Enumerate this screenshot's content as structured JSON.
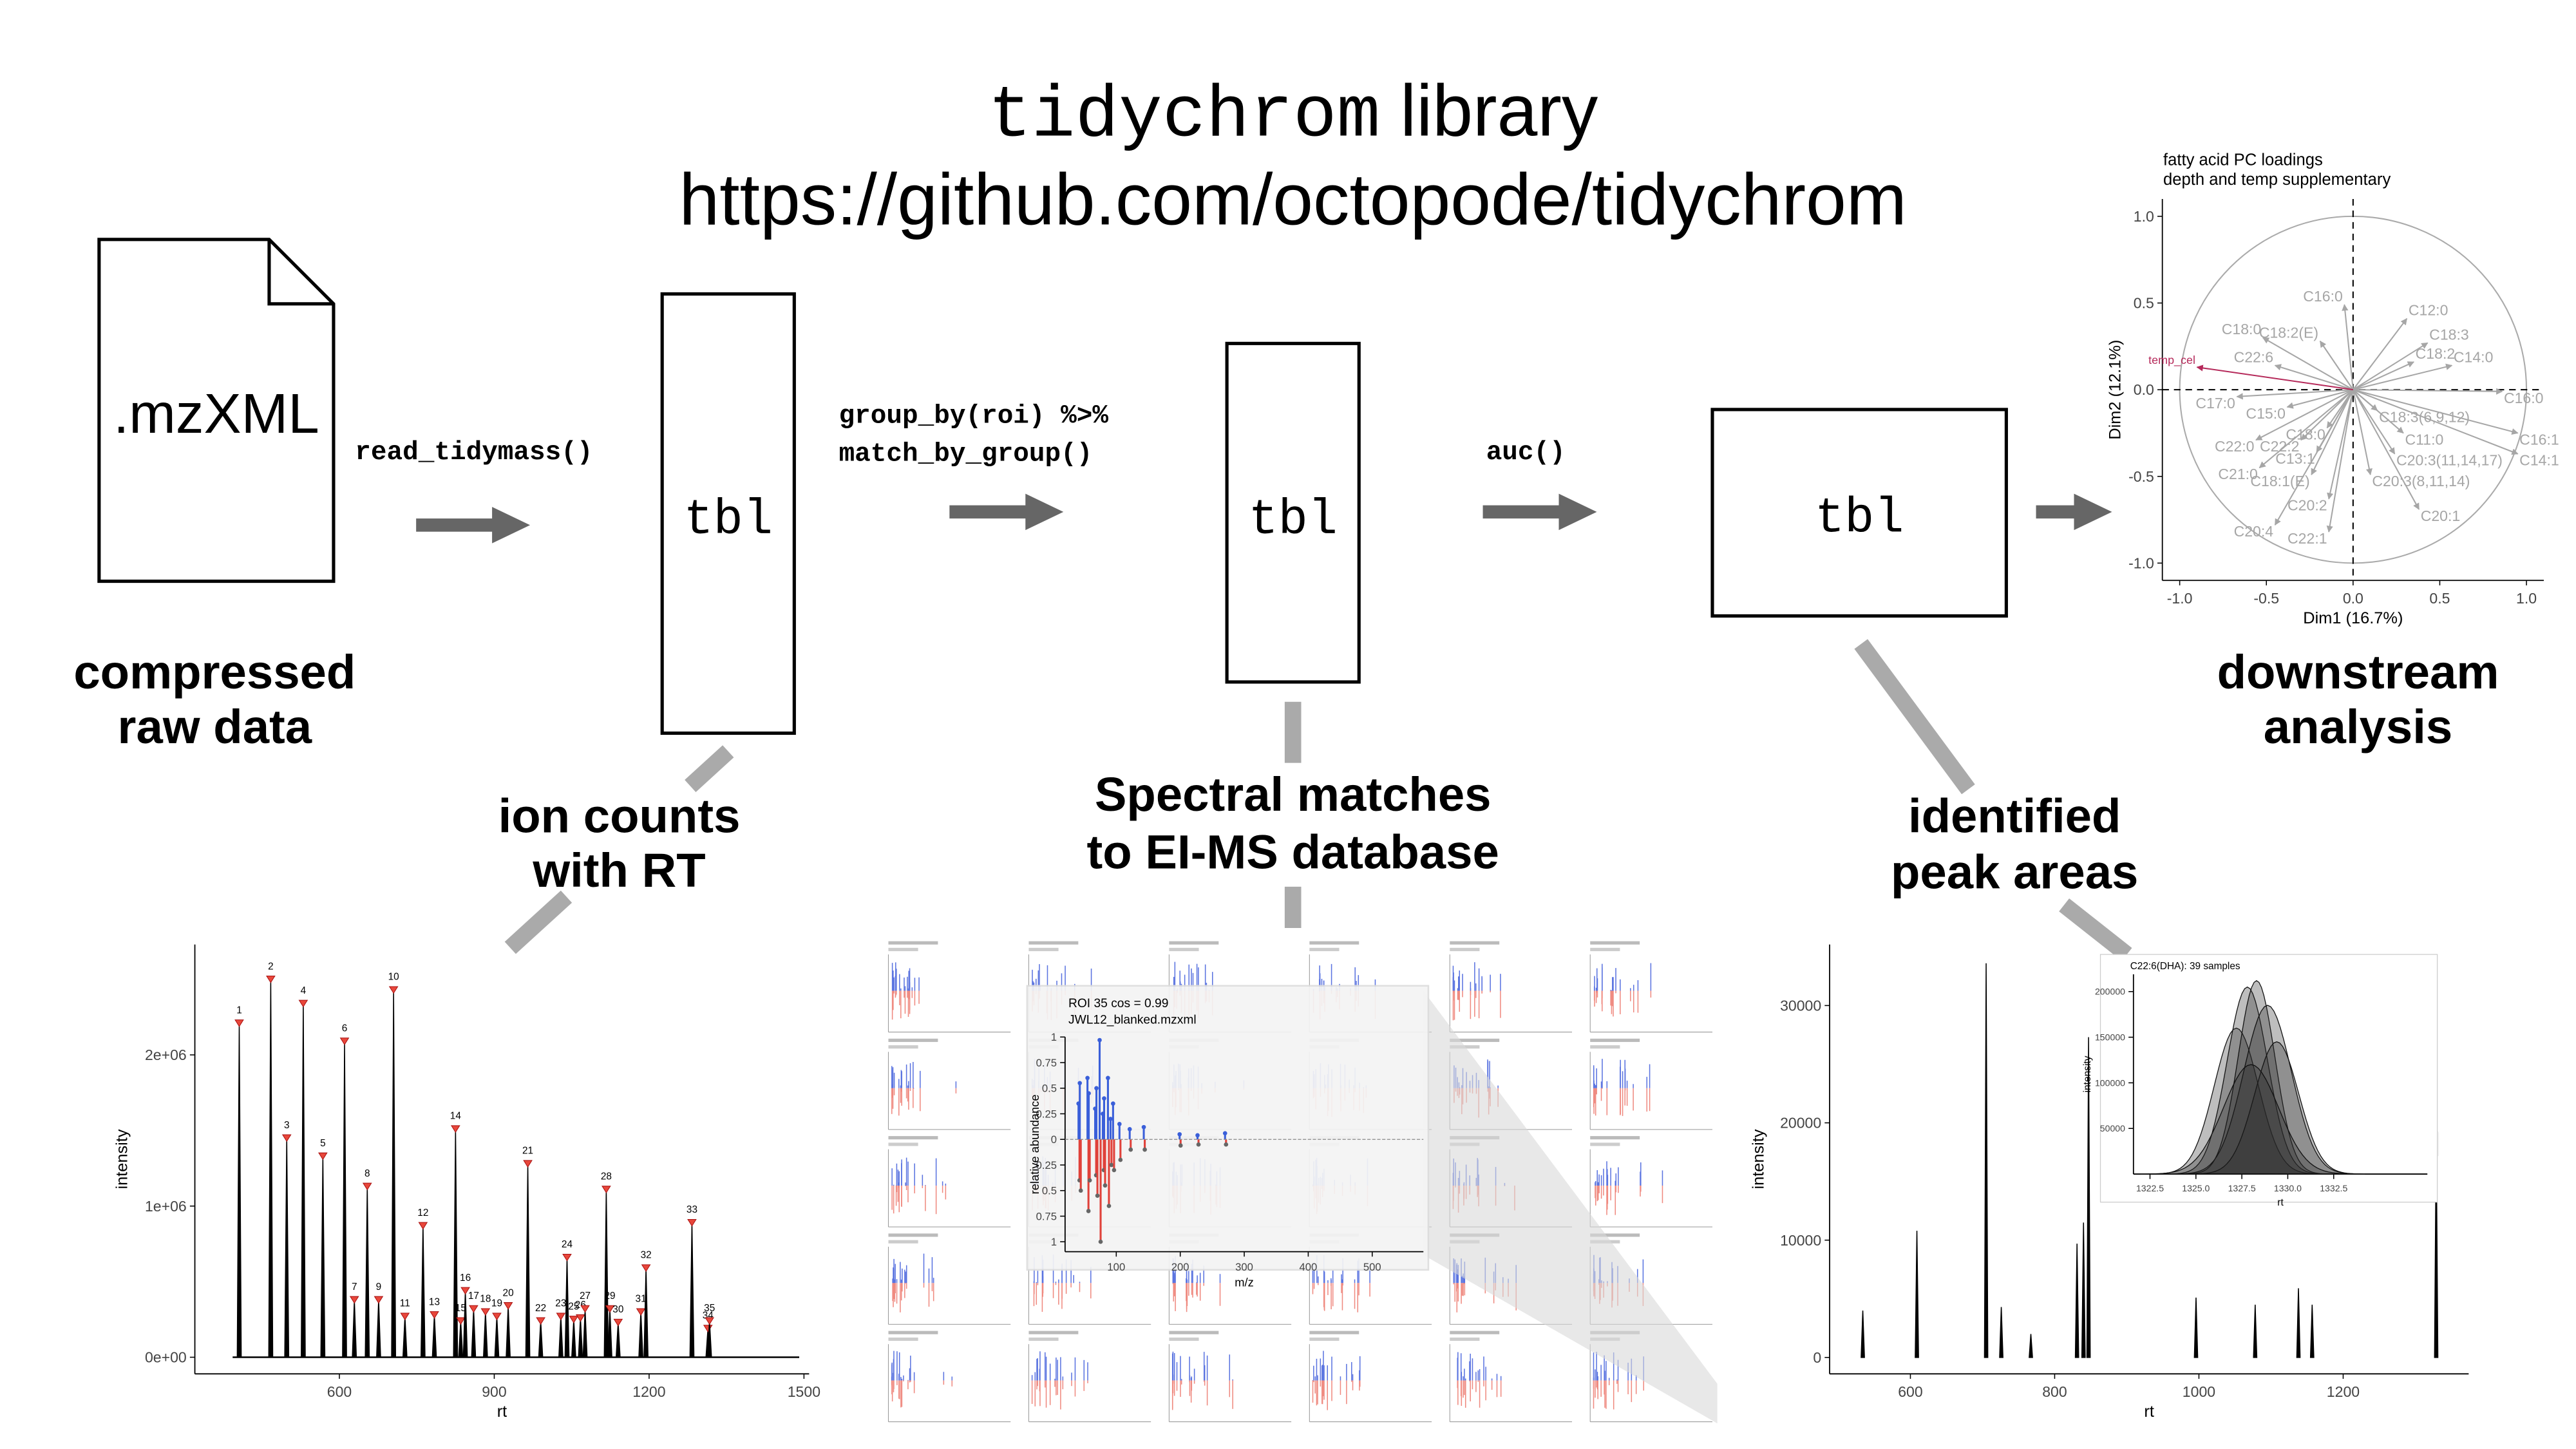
{
  "header": {
    "title_code": "tidychrom",
    "title_text": "library",
    "url": "https://github.com/octopode/tidychrom"
  },
  "pipeline": {
    "input_file": ".mzXML",
    "steps": [
      {
        "code": [
          "read_tidymass()"
        ]
      },
      {
        "code": [
          "group_by(roi) %>%",
          "match_by_group()"
        ]
      },
      {
        "code": [
          "auc()"
        ]
      }
    ],
    "tables": [
      "tbl",
      "tbl",
      "tbl"
    ]
  },
  "captions": {
    "raw": [
      "compressed",
      "raw data"
    ],
    "ions": [
      "ion counts",
      "with RT"
    ],
    "spectral": [
      "Spectral matches",
      "to EI-MS database"
    ],
    "areas": [
      "identified",
      "peak areas"
    ],
    "downstream": [
      "downstream",
      "analysis"
    ]
  },
  "chromatogram": {
    "type": "line",
    "x_label": "rt",
    "y_label": "intensity",
    "xlim": [
      320,
      1510
    ],
    "xticks": [
      600,
      900,
      1200,
      1500
    ],
    "ylim": [
      -110000,
      2730000
    ],
    "yticks": [
      {
        "value": 0,
        "label": "0e+00"
      },
      {
        "value": 1000000,
        "label": "1e+06"
      },
      {
        "value": 2000000,
        "label": "2e+06"
      }
    ],
    "peaks": {
      "labels": [
        "1",
        "2",
        "3",
        "4",
        "5",
        "6",
        "7",
        "8",
        "9",
        "10",
        "11",
        "12",
        "13",
        "14",
        "15",
        "16",
        "17",
        "18",
        "19",
        "20",
        "21",
        "22",
        "23",
        "24",
        "25",
        "26",
        "27",
        "28",
        "29",
        "30",
        "31",
        "32",
        "33",
        "34",
        "35"
      ],
      "rt": [
        406,
        467,
        498,
        530,
        568,
        610,
        629,
        654,
        676,
        705,
        727,
        762,
        784,
        825,
        835,
        844,
        860,
        883,
        905,
        927,
        965,
        990,
        1029,
        1041,
        1054,
        1067,
        1076,
        1117,
        1124,
        1140,
        1184,
        1194,
        1283,
        1314,
        1317
      ],
      "intensity": [
        2210000,
        2500000,
        1450000,
        2340000,
        1330000,
        2090000,
        380000,
        1130000,
        380000,
        2430000,
        270000,
        870000,
        280000,
        1510000,
        240000,
        440000,
        320000,
        300000,
        270000,
        340000,
        1280000,
        240000,
        270000,
        660000,
        250000,
        260000,
        320000,
        1110000,
        320000,
        230000,
        300000,
        590000,
        890000,
        190000,
        240000
      ]
    }
  },
  "spectral_match": {
    "type": "bar",
    "title": "ROI 35 cos = 0.99",
    "file": "JWL12_blanked.mzxml",
    "x_label": "m/z",
    "y_label": "relative abundance",
    "xlim": [
      20,
      580
    ],
    "xticks": [
      100,
      200,
      300,
      400,
      500
    ],
    "ylim": [
      -1,
      1
    ],
    "yticks": [
      {
        "value": -1,
        "label": "1"
      },
      {
        "value": -0.75,
        "label": "0.75"
      },
      {
        "value": -0.5,
        "label": "0.5"
      },
      {
        "value": -0.25,
        "label": "0.25"
      },
      0,
      0.25,
      0.5,
      0.75,
      1
    ],
    "mz": [
      41,
      43,
      55,
      57,
      67,
      69,
      74,
      79,
      81,
      87,
      91,
      95,
      105,
      121,
      143,
      199,
      227,
      270
    ],
    "library": [
      0.35,
      0.55,
      0.6,
      0.45,
      0.3,
      0.5,
      0.97,
      0.25,
      0.4,
      0.6,
      0.2,
      0.35,
      0.15,
      0.1,
      0.12,
      0.05,
      0.04,
      0.06
    ],
    "sample": [
      -0.4,
      -0.5,
      -0.7,
      -0.4,
      -0.35,
      -0.55,
      -1,
      -0.3,
      -0.45,
      -0.65,
      -0.25,
      -0.3,
      -0.2,
      -0.1,
      -0.1,
      -0.06,
      -0.05,
      -0.05
    ],
    "library_color": "#3a5fd9",
    "sample_color": "#e0413a"
  },
  "peak_areas": {
    "type": "line",
    "x_label": "rt",
    "y_label": "intensity",
    "xlim": [
      488,
      1374
    ],
    "xticks": [
      600,
      800,
      1000,
      1200
    ],
    "ylim": [
      -1400,
      35200
    ],
    "yticks": [
      0,
      10000,
      20000,
      30000
    ],
    "peaks": {
      "rt": [
        534,
        609,
        705,
        726,
        767,
        831,
        840,
        847,
        996,
        1078,
        1138,
        1157,
        1329
      ],
      "intensity": [
        4000,
        10800,
        33600,
        4300,
        2000,
        9700,
        11500,
        27300,
        5100,
        4500,
        5900,
        4500,
        18900
      ]
    },
    "inset": {
      "title": "C22:6(DHA): 39 samples",
      "x_label": "rt",
      "y_label": "intensity",
      "xlim": [
        1321.6,
        1337.6
      ],
      "xticks": [
        1322.5,
        {
          "value": 1325,
          "label": "1325.0"
        },
        1327.5,
        {
          "value": 1330,
          "label": "1330.0"
        },
        1332.5
      ],
      "ylim": [
        0,
        219000
      ],
      "yticks": [
        50000,
        100000,
        150000,
        200000
      ],
      "samples": {
        "center": [
          1327.2,
          1327.8,
          1328.3,
          1328.9,
          1329.4,
          1328.0
        ],
        "height": [
          160000,
          205000,
          212000,
          185000,
          145000,
          120000
        ],
        "sigma": [
          1.2,
          1.1,
          1.0,
          1.3,
          1.2,
          1.5
        ]
      }
    }
  },
  "pca": {
    "type": "scatter",
    "title": [
      "fatty acid PC loadings",
      "depth and temp supplementary"
    ],
    "x_label": "Dim1 (16.7%)",
    "y_label": "Dim2 (12.1%)",
    "xlim": [
      -1.1,
      1.1
    ],
    "ylim": [
      -1.1,
      1.1
    ],
    "xticks": [
      {
        "value": -1,
        "label": "-1.0"
      },
      -0.5,
      {
        "value": 0,
        "label": "0.0"
      },
      0.5,
      {
        "value": 1,
        "label": "1.0"
      }
    ],
    "yticks": [
      {
        "value": -1,
        "label": "-1.0"
      },
      -0.5,
      {
        "value": 0,
        "label": "0.0"
      },
      0.5,
      {
        "value": 1,
        "label": "1.0"
      }
    ],
    "loadings": {
      "color": "#a6a6a6",
      "names": [
        "C16:0",
        "C12:0",
        "C18:3",
        "C18:2",
        "C14:0",
        "C18:0",
        "C18:2(E)",
        "C22:6",
        "C17:0",
        "C15:0",
        "C16:0",
        "C16:1",
        "C14:1",
        "C18:3(6,9,12)",
        "C11:0",
        "C20:3(11,14,17)",
        "C20:3(8,11,14)",
        "C20:1",
        "C18:0",
        "C13:1",
        "C22:2",
        "C22:0",
        "C21:0",
        "C18:1(E)",
        "C20:2",
        "C22:1",
        "C20:4"
      ],
      "dim1": [
        -0.05,
        0.31,
        0.43,
        0.35,
        0.57,
        -0.52,
        -0.19,
        -0.45,
        -0.67,
        -0.38,
        0.86,
        0.95,
        0.95,
        0.14,
        0.29,
        0.24,
        0.1,
        0.38,
        -0.15,
        -0.21,
        -0.3,
        -0.56,
        -0.54,
        -0.24,
        -0.14,
        -0.14,
        -0.45
      ],
      "dim2": [
        0.49,
        0.41,
        0.27,
        0.16,
        0.14,
        0.3,
        0.28,
        0.14,
        -0.04,
        -0.1,
        -0.01,
        -0.25,
        -0.37,
        -0.12,
        -0.25,
        -0.37,
        -0.49,
        -0.69,
        -0.22,
        -0.36,
        -0.29,
        -0.29,
        -0.45,
        -0.49,
        -0.63,
        -0.82,
        -0.78
      ]
    },
    "supplementary": {
      "color": "#b5295a",
      "names": [
        "temp_cel"
      ],
      "dim1": [
        -0.9
      ],
      "dim2": [
        0.13
      ]
    }
  }
}
